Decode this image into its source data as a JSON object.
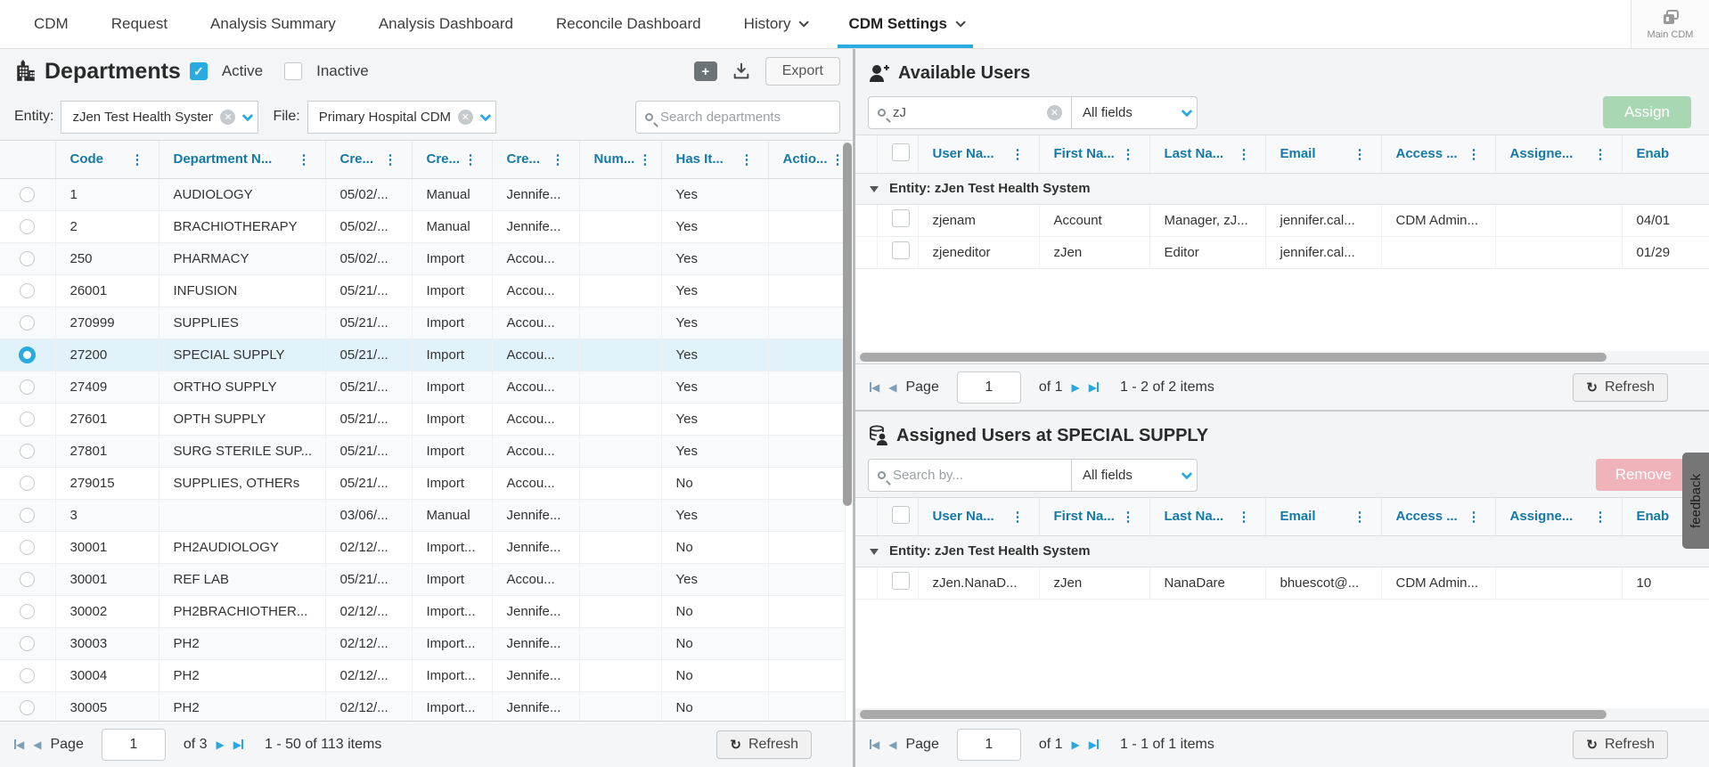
{
  "colors": {
    "accent": "#29abe2",
    "header_text": "#1579a7",
    "assign_green": "#a9d7b4",
    "remove_pink": "#f1b3ba",
    "selected_row": "#e2f2fb"
  },
  "icons": {
    "building-icon": "hospital building glyph",
    "user-plus-icon": "person with plus",
    "db-user-icon": "database stack with person",
    "main-cdm-icon": "stacked documents",
    "search-icon": "magnifier",
    "clear-icon": "circle x",
    "chevron-down-icon": "chevron down",
    "column-menu-icon": "vertical ellipsis",
    "download-icon": "arrow into tray",
    "add-icon": "plus in square",
    "refresh-icon": "circular arrow",
    "pager-icons": "first/prev/next/last triangles",
    "group-collapse-icon": "triangle down",
    "feedback-label": "feedback"
  },
  "nav": {
    "tabs": [
      {
        "label": "CDM",
        "active": false,
        "caret": false
      },
      {
        "label": "Request",
        "active": false,
        "caret": false
      },
      {
        "label": "Analysis Summary",
        "active": false,
        "caret": false
      },
      {
        "label": "Analysis Dashboard",
        "active": false,
        "caret": false
      },
      {
        "label": "Reconcile Dashboard",
        "active": false,
        "caret": false
      },
      {
        "label": "History",
        "active": false,
        "caret": true
      },
      {
        "label": "CDM Settings",
        "active": true,
        "caret": true
      }
    ],
    "main_cdm_label": "Main CDM"
  },
  "departments": {
    "title": "Departments",
    "active_label": "Active",
    "active_checked": true,
    "inactive_label": "Inactive",
    "inactive_checked": false,
    "export_label": "Export",
    "entity_label": "Entity:",
    "entity_value": "zJen Test Health System",
    "file_label": "File:",
    "file_value": "Primary Hospital CDM",
    "search_placeholder": "Search departments",
    "columns": [
      "Code",
      "Department N...",
      "Cre...",
      "Cre...",
      "Cre...",
      "Num...",
      "Has It...",
      "Actio..."
    ],
    "rows": [
      {
        "code": "1",
        "name": "AUDIOLOGY",
        "created": "05/02/...",
        "source": "Manual",
        "author": "Jennife...",
        "num": "",
        "has_items": "Yes",
        "action": "",
        "selected": false
      },
      {
        "code": "2",
        "name": "BRACHIOTHERAPY",
        "created": "05/02/...",
        "source": "Manual",
        "author": "Jennife...",
        "num": "",
        "has_items": "Yes",
        "action": "",
        "selected": false
      },
      {
        "code": "250",
        "name": "PHARMACY",
        "created": "05/02/...",
        "source": "Import",
        "author": "Accou...",
        "num": "",
        "has_items": "Yes",
        "action": "",
        "selected": false
      },
      {
        "code": "26001",
        "name": "INFUSION",
        "created": "05/21/...",
        "source": "Import",
        "author": "Accou...",
        "num": "",
        "has_items": "Yes",
        "action": "",
        "selected": false
      },
      {
        "code": "270999",
        "name": "SUPPLIES",
        "created": "05/21/...",
        "source": "Import",
        "author": "Accou...",
        "num": "",
        "has_items": "Yes",
        "action": "",
        "selected": false
      },
      {
        "code": "27200",
        "name": "SPECIAL SUPPLY",
        "created": "05/21/...",
        "source": "Import",
        "author": "Accou...",
        "num": "",
        "has_items": "Yes",
        "action": "",
        "selected": true
      },
      {
        "code": "27409",
        "name": "ORTHO SUPPLY",
        "created": "05/21/...",
        "source": "Import",
        "author": "Accou...",
        "num": "",
        "has_items": "Yes",
        "action": "",
        "selected": false
      },
      {
        "code": "27601",
        "name": "OPTH SUPPLY",
        "created": "05/21/...",
        "source": "Import",
        "author": "Accou...",
        "num": "",
        "has_items": "Yes",
        "action": "",
        "selected": false
      },
      {
        "code": "27801",
        "name": "SURG STERILE SUP...",
        "created": "05/21/...",
        "source": "Import",
        "author": "Accou...",
        "num": "",
        "has_items": "Yes",
        "action": "",
        "selected": false
      },
      {
        "code": "279015",
        "name": "SUPPLIES, OTHERs",
        "created": "05/21/...",
        "source": "Import",
        "author": "Accou...",
        "num": "",
        "has_items": "No",
        "action": "",
        "selected": false
      },
      {
        "code": "3",
        "name": "",
        "created": "03/06/...",
        "source": "Manual",
        "author": "Jennife...",
        "num": "",
        "has_items": "Yes",
        "action": "",
        "selected": false
      },
      {
        "code": "30001",
        "name": "PH2AUDIOLOGY",
        "created": "02/12/...",
        "source": "Import...",
        "author": "Jennife...",
        "num": "",
        "has_items": "No",
        "action": "",
        "selected": false
      },
      {
        "code": "30001",
        "name": "REF LAB",
        "created": "05/21/...",
        "source": "Import",
        "author": "Accou...",
        "num": "",
        "has_items": "Yes",
        "action": "",
        "selected": false
      },
      {
        "code": "30002",
        "name": "PH2BRACHIOTHER...",
        "created": "02/12/...",
        "source": "Import...",
        "author": "Jennife...",
        "num": "",
        "has_items": "No",
        "action": "",
        "selected": false
      },
      {
        "code": "30003",
        "name": "PH2",
        "created": "02/12/...",
        "source": "Import...",
        "author": "Jennife...",
        "num": "",
        "has_items": "No",
        "action": "",
        "selected": false
      },
      {
        "code": "30004",
        "name": "PH2",
        "created": "02/12/...",
        "source": "Import...",
        "author": "Jennife...",
        "num": "",
        "has_items": "No",
        "action": "",
        "selected": false
      },
      {
        "code": "30005",
        "name": "PH2",
        "created": "02/12/...",
        "source": "Import...",
        "author": "Jennife...",
        "num": "",
        "has_items": "No",
        "action": "",
        "selected": false
      }
    ],
    "pagination": {
      "page_label": "Page",
      "page_value": "1",
      "of_text": "of 3",
      "items_text": "1 - 50 of 113 items",
      "refresh_label": "Refresh"
    }
  },
  "available_users": {
    "title": "Available Users",
    "search_value": "zJ",
    "search_placeholder": "",
    "fields_value": "All fields",
    "assign_label": "Assign",
    "columns": [
      "User Na...",
      "First Na...",
      "Last Na...",
      "Email",
      "Access ...",
      "Assigne...",
      "Enab"
    ],
    "group_label": "Entity: zJen Test Health System",
    "rows": [
      {
        "user": "zjenam",
        "first": "Account",
        "last": "Manager, zJ...",
        "email": "jennifer.cal...",
        "access": "CDM Admin...",
        "assigned": "",
        "enabled": "04/01"
      },
      {
        "user": "zjeneditor",
        "first": "zJen",
        "last": "Editor",
        "email": "jennifer.cal...",
        "access": "",
        "assigned": "",
        "enabled": "01/29"
      }
    ],
    "pagination": {
      "page_label": "Page",
      "page_value": "1",
      "of_text": "of 1",
      "items_text": "1 - 2 of 2 items",
      "refresh_label": "Refresh"
    }
  },
  "assigned_users": {
    "title": "Assigned Users at SPECIAL SUPPLY",
    "search_value": "",
    "search_placeholder": "Search by...",
    "fields_value": "All fields",
    "remove_label": "Remove",
    "columns": [
      "User Na...",
      "First Na...",
      "Last Na...",
      "Email",
      "Access ...",
      "Assigne...",
      "Enab"
    ],
    "group_label": "Entity: zJen Test Health System",
    "rows": [
      {
        "user": "zJen.NanaD...",
        "first": "zJen",
        "last": "NanaDare",
        "email": "bhuescot@...",
        "access": "CDM Admin...",
        "assigned": "",
        "enabled": "10"
      }
    ],
    "pagination": {
      "page_label": "Page",
      "page_value": "1",
      "of_text": "of 1",
      "items_text": "1 - 1 of 1 items",
      "refresh_label": "Refresh"
    }
  },
  "feedback_label": "feedback"
}
